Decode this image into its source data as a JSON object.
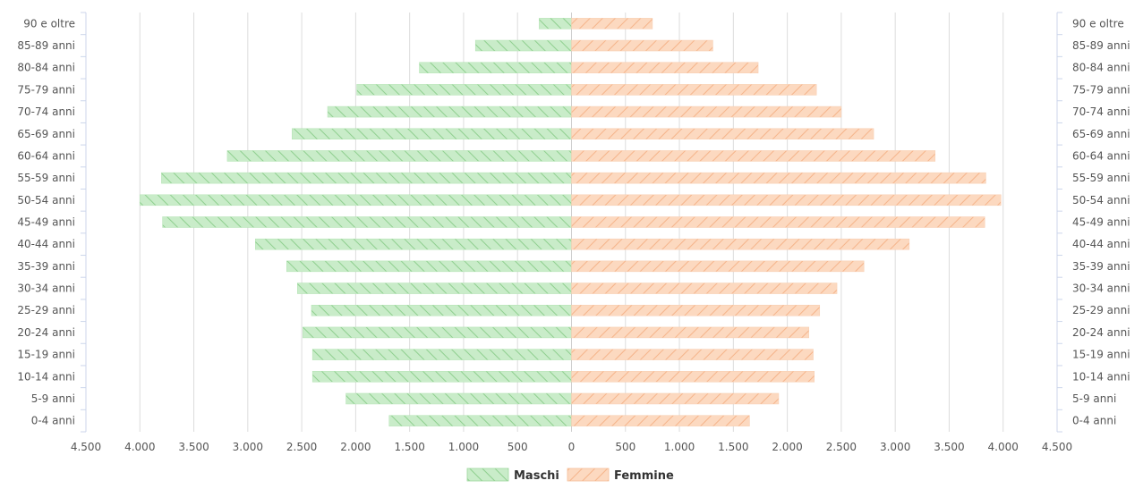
{
  "chart_data": {
    "type": "bar",
    "orientation": "horizontal",
    "layout": "population-pyramid",
    "categories": [
      "0-4 anni",
      "5-9 anni",
      "10-14 anni",
      "15-19 anni",
      "20-24 anni",
      "25-29 anni",
      "30-34 anni",
      "35-39 anni",
      "40-44 anni",
      "45-49 anni",
      "50-54 anni",
      "55-59 anni",
      "60-64 anni",
      "65-69 anni",
      "70-74 anni",
      "75-79 anni",
      "80-84 anni",
      "85-89 anni",
      "90 e oltre"
    ],
    "series": [
      {
        "name": "Maschi",
        "side": "left",
        "color": "#96d896",
        "values": [
          1690,
          2090,
          2400,
          2400,
          2490,
          2410,
          2540,
          2640,
          2930,
          3790,
          4000,
          3800,
          3190,
          2590,
          2260,
          1990,
          1410,
          890,
          300
        ]
      },
      {
        "name": "Femmine",
        "side": "right",
        "color": "#f9be96",
        "values": [
          1650,
          1920,
          2250,
          2240,
          2200,
          2300,
          2460,
          2710,
          3130,
          3830,
          3980,
          3840,
          3370,
          2800,
          2500,
          2270,
          1730,
          1310,
          750
        ]
      }
    ],
    "x_ticks": [
      "4.500",
      "4.000",
      "3.500",
      "3.000",
      "2.500",
      "2.000",
      "1.500",
      "1.000",
      "500",
      "0",
      "500",
      "1.000",
      "1.500",
      "2.000",
      "2.500",
      "3.000",
      "3.500",
      "4.000",
      "4.500"
    ],
    "xlim": [
      -4500,
      4500
    ],
    "grid": "vertical",
    "legend_position": "bottom-center",
    "title": "",
    "xlabel": "",
    "ylabel": ""
  }
}
